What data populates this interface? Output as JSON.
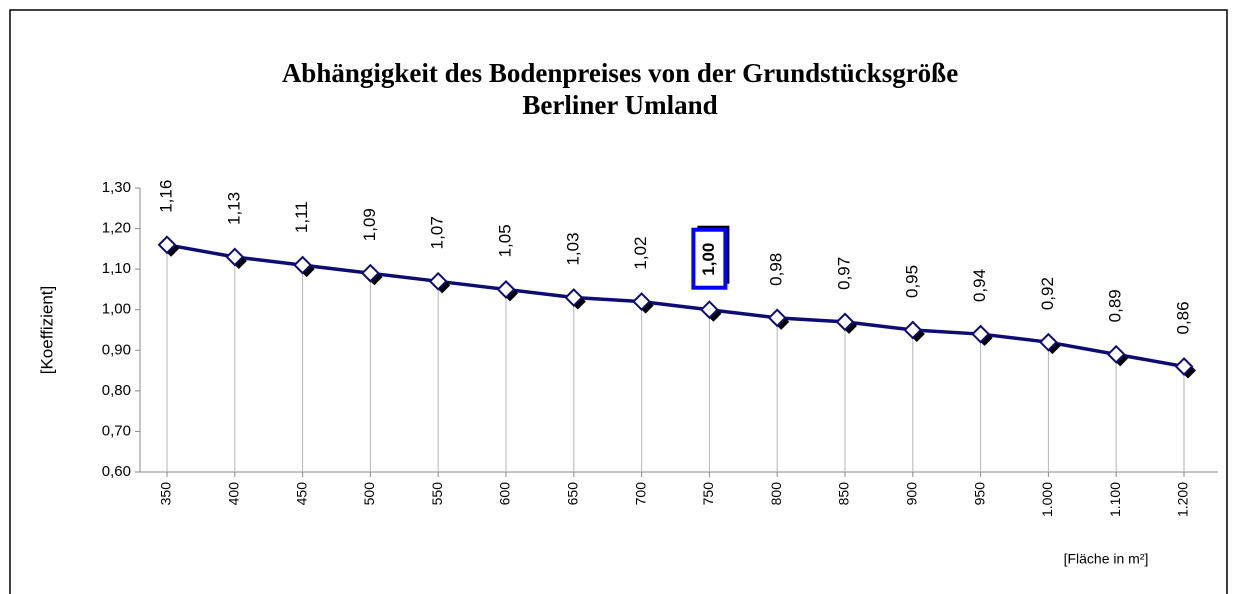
{
  "chart_data": {
    "type": "line",
    "title": "Abhängigkeit des Bodenpreises von der Grundstücksgröße",
    "subtitle": "Berliner Umland",
    "y_label": "[Koeffizient]",
    "x_label": "[Fläche in m²]",
    "categories": [
      "350",
      "400",
      "450",
      "500",
      "550",
      "600",
      "650",
      "700",
      "750",
      "800",
      "850",
      "900",
      "950",
      "1.000",
      "1.100",
      "1.200"
    ],
    "series": [
      {
        "name": "Koeffizient",
        "color": "#0c0c72",
        "values": [
          1.16,
          1.13,
          1.11,
          1.09,
          1.07,
          1.05,
          1.03,
          1.02,
          1.0,
          0.98,
          0.97,
          0.95,
          0.94,
          0.92,
          0.89,
          0.86
        ],
        "value_labels": [
          "1,16",
          "1,13",
          "1,11",
          "1,09",
          "1,07",
          "1,05",
          "1,03",
          "1,02",
          "1,00",
          "0,98",
          "0,97",
          "0,95",
          "0,94",
          "0,92",
          "0,89",
          "0,86"
        ]
      }
    ],
    "highlighted_category": "750",
    "highlight_color": "#0000ff",
    "ylim": [
      0.6,
      1.3
    ],
    "yticks": [
      {
        "value": 0.6,
        "label": "0,60"
      },
      {
        "value": 0.7,
        "label": "0,70"
      },
      {
        "value": 0.8,
        "label": "0,80"
      },
      {
        "value": 0.9,
        "label": "0,90"
      },
      {
        "value": 1.0,
        "label": "1,00"
      },
      {
        "value": 1.1,
        "label": "1,10"
      },
      {
        "value": 1.2,
        "label": "1,20"
      },
      {
        "value": 1.3,
        "label": "1,30"
      }
    ],
    "drop_lines": true
  }
}
